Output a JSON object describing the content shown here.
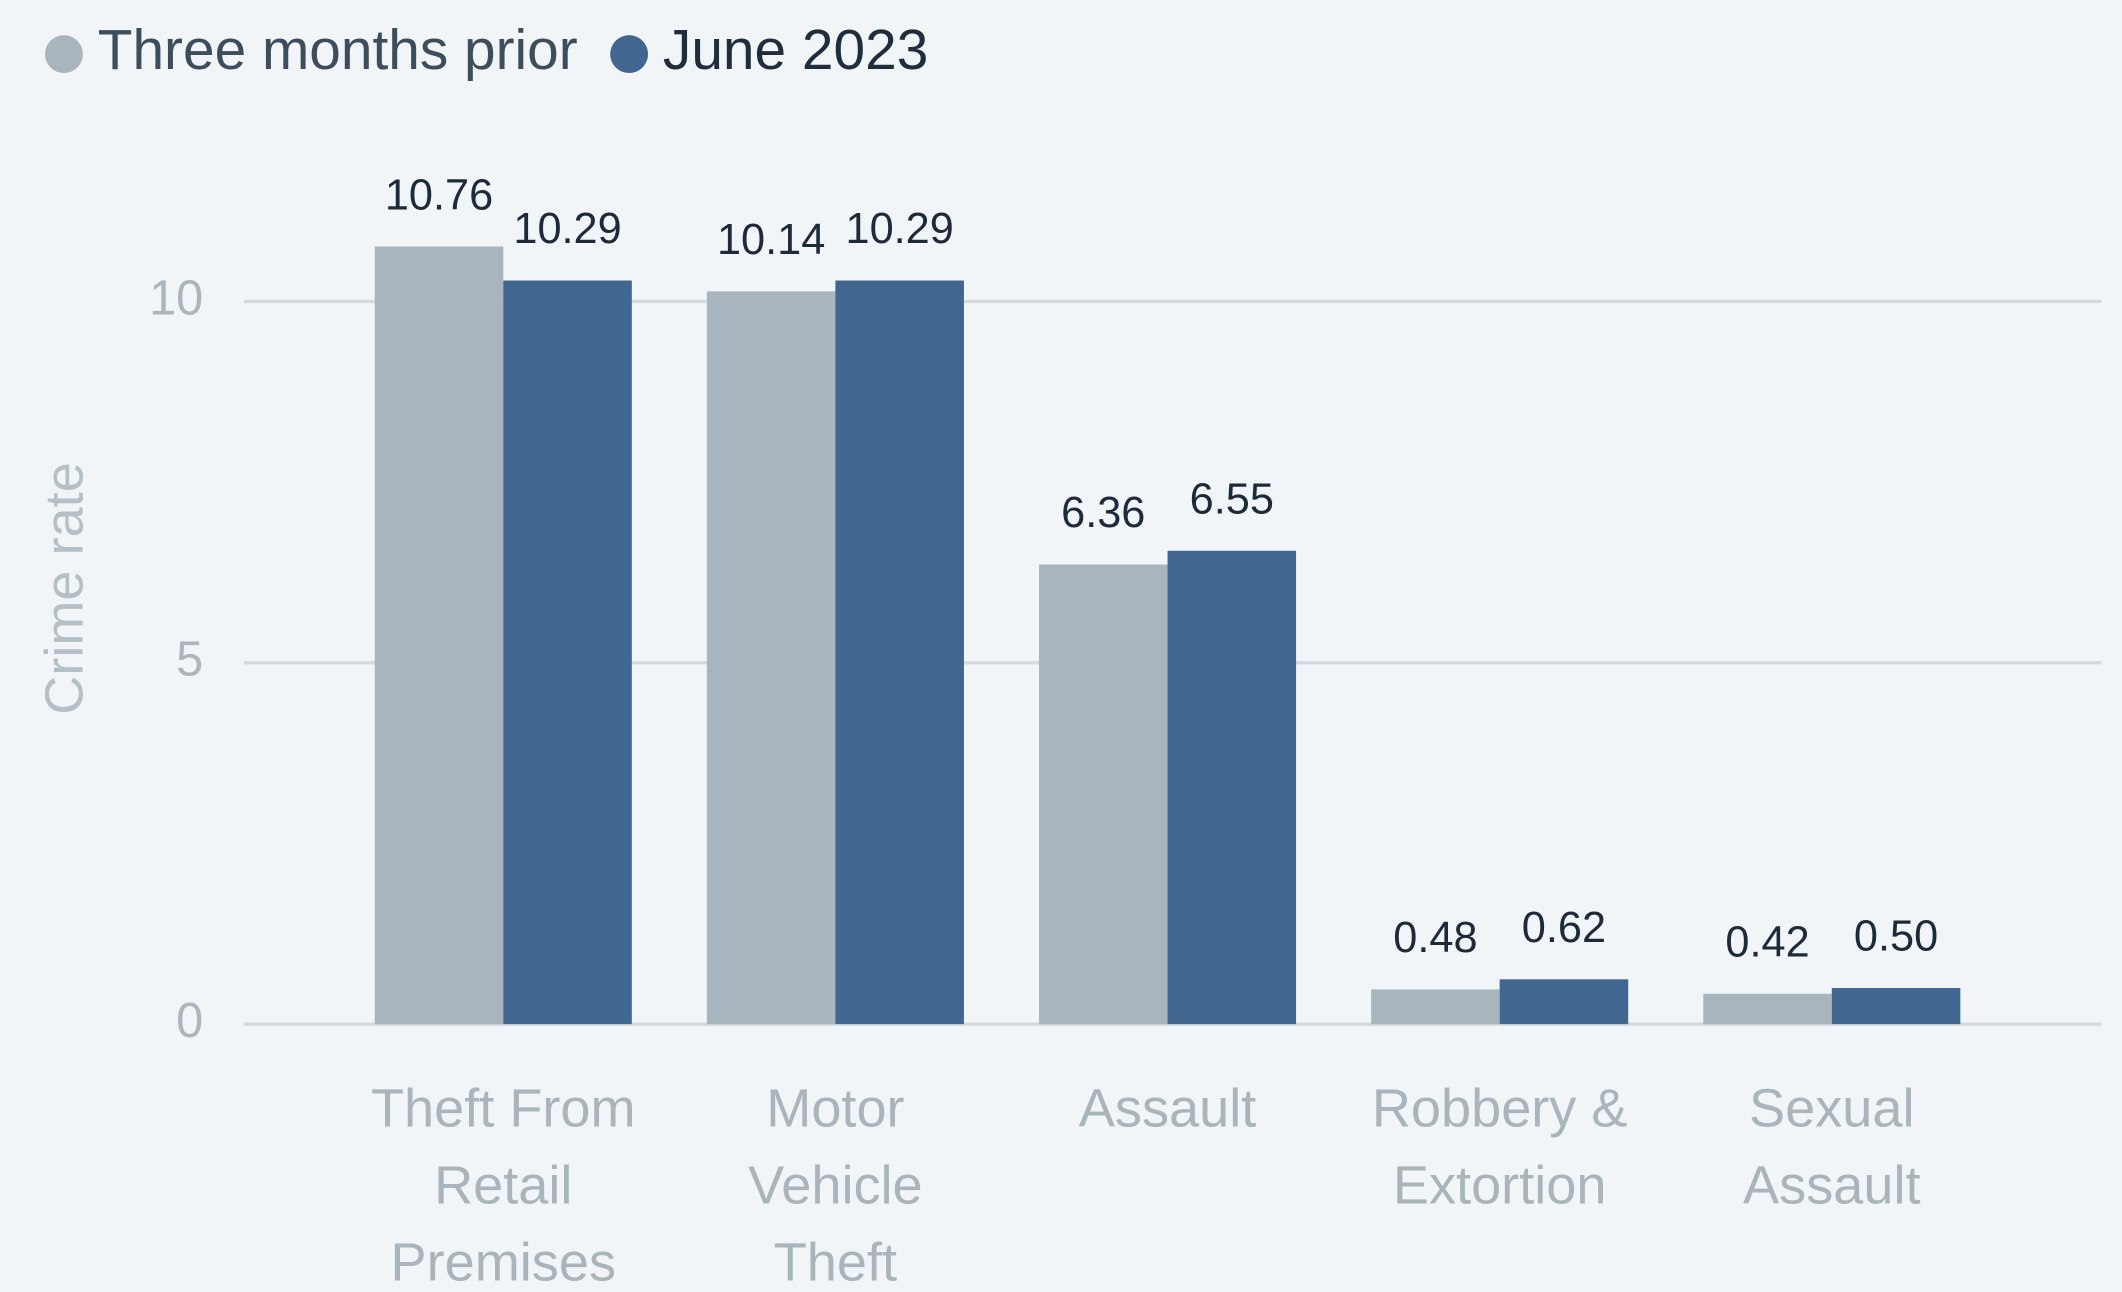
{
  "chart_data": {
    "type": "bar",
    "y_axis_label": "Crime rate",
    "categories": [
      [
        "Theft From",
        "Retail",
        "Premises"
      ],
      [
        "Motor",
        "Vehicle",
        "Theft"
      ],
      [
        "Assault"
      ],
      [
        "Robbery &",
        "Extortion"
      ],
      [
        "Sexual",
        "Assault"
      ]
    ],
    "series": [
      {
        "name": "Three months prior",
        "color": "#a8b5bc",
        "values": [
          10.76,
          10.14,
          6.36,
          0.48,
          0.42
        ],
        "value_labels": [
          "10.76",
          "10.14",
          "6.36",
          "0.48",
          "0.42"
        ]
      },
      {
        "name": "June 2023",
        "color": "#41668f",
        "values": [
          10.29,
          10.29,
          6.55,
          0.62,
          0.5
        ],
        "value_labels": [
          "10.29",
          "10.29",
          "6.55",
          "0.62",
          "0.50"
        ]
      }
    ],
    "ylim": [
      0,
      12
    ],
    "yticks": [
      0,
      5,
      10
    ],
    "grid": true,
    "legend": "top-left"
  }
}
